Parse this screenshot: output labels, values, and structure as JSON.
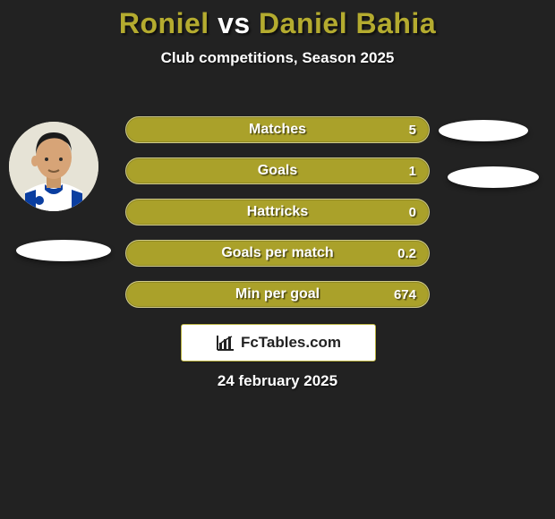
{
  "title": {
    "player1": "Roniel",
    "vs": " vs ",
    "player2": "Daniel Bahia",
    "color_players": "#b4ab2f",
    "color_vs": "#ffffff",
    "fontsize": 32
  },
  "subtitle": "Club competitions, Season 2025",
  "bars": {
    "bar_color": "#aaa12a",
    "border_color": "#ffffff",
    "text_color": "#ffffff",
    "label_fontsize": 16,
    "value_fontsize": 15,
    "height": 30,
    "gap": 16,
    "items": [
      {
        "label": "Matches",
        "value": "5"
      },
      {
        "label": "Goals",
        "value": "1"
      },
      {
        "label": "Hattricks",
        "value": "0"
      },
      {
        "label": "Goals per match",
        "value": "0.2"
      },
      {
        "label": "Min per goal",
        "value": "674"
      }
    ]
  },
  "brand": {
    "text": "FcTables.com",
    "icon": "bar-chart-icon",
    "box_border": "#b9b13f",
    "box_bg": "#ffffff"
  },
  "date": "24 february 2025",
  "ellipses": {
    "color": "#ffffff"
  },
  "colors": {
    "background": "#222222"
  }
}
